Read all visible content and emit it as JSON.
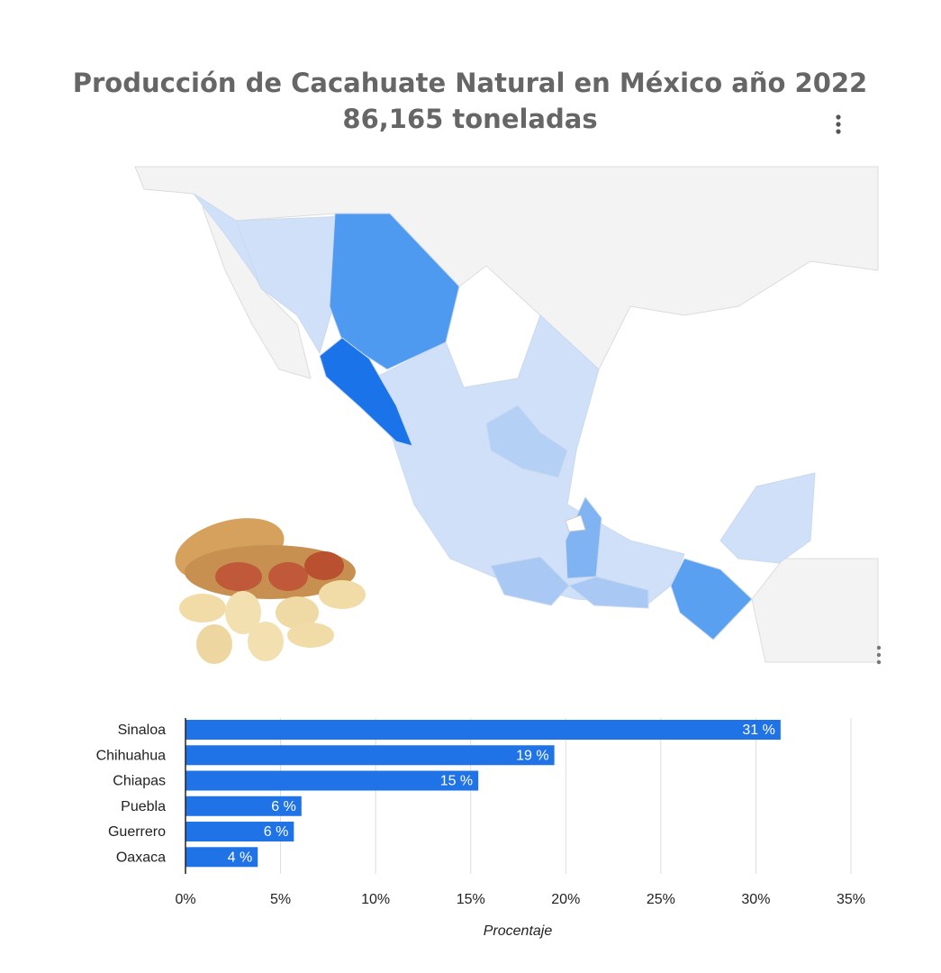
{
  "chart_data": {
    "type": "bar",
    "orientation": "horizontal",
    "title": "Producción de Cacahuate Natural en México año 2022",
    "subtitle": "86,165 toneladas",
    "categories": [
      "Sinaloa",
      "Chihuahua",
      "Chiapas",
      "Puebla",
      "Guerrero",
      "Oaxaca"
    ],
    "values": [
      31.3,
      19.4,
      15.4,
      6.1,
      5.7,
      3.8
    ],
    "value_labels": [
      "31 %",
      "19 %",
      "15 %",
      "6 %",
      "6 %",
      "4 %"
    ],
    "color": "#1f73e6",
    "xlim": [
      0,
      35
    ],
    "xticks": [
      {
        "value": 0,
        "label": "0%"
      },
      {
        "value": 5,
        "label": "5%"
      },
      {
        "value": 10,
        "label": "10%"
      },
      {
        "value": 15,
        "label": "15%"
      },
      {
        "value": 20,
        "label": "20%"
      },
      {
        "value": 25,
        "label": "25%"
      },
      {
        "value": 30,
        "label": "30%"
      },
      {
        "value": 35,
        "label": "35%"
      }
    ],
    "x_label": "Procentaje",
    "grid": true
  }
}
